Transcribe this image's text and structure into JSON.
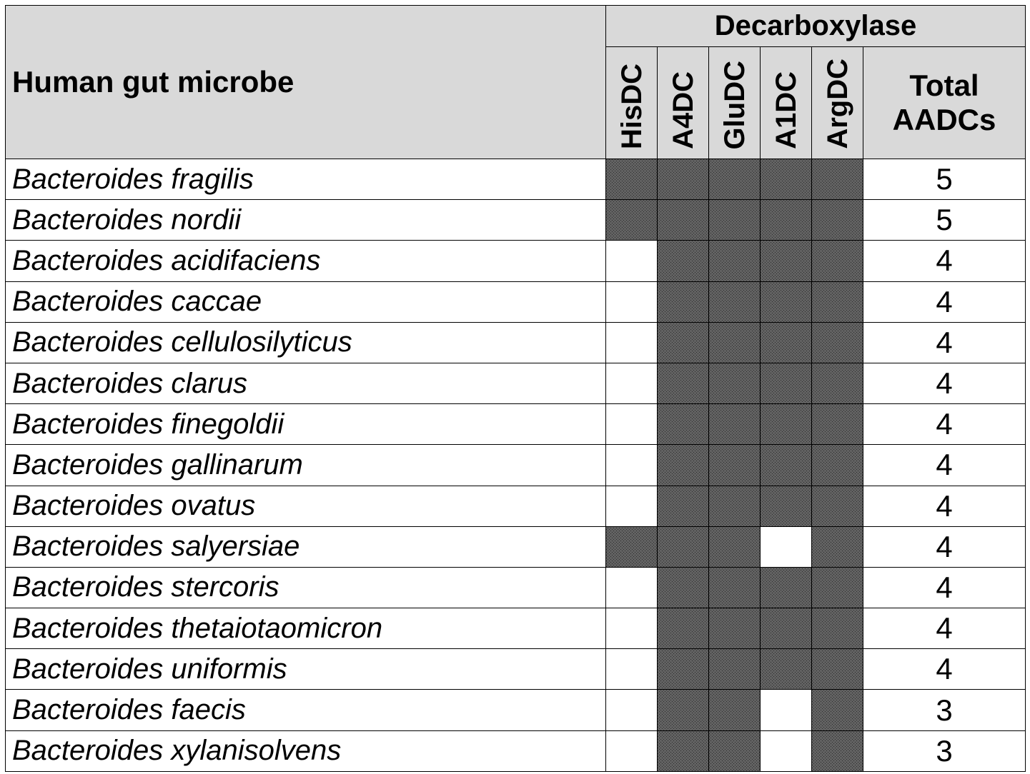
{
  "header": {
    "microbe_label": "Human gut microbe",
    "group_label": "Decarboxylase",
    "enzymes": [
      "HisDC",
      "A4DC",
      "GluDC",
      "A1DC",
      "ArgDC"
    ],
    "total_line1": "Total",
    "total_line2": "AADCs"
  },
  "colors": {
    "header_bg": "#d9d9d9",
    "present_fill": "#5a5a5a",
    "absent_fill": "#ffffff"
  },
  "rows": [
    {
      "name": "Bacteroides fragilis",
      "present": [
        true,
        true,
        true,
        true,
        true
      ],
      "total": "5"
    },
    {
      "name": "Bacteroides nordii",
      "present": [
        true,
        true,
        true,
        true,
        true
      ],
      "total": "5"
    },
    {
      "name": "Bacteroides acidifaciens",
      "present": [
        false,
        true,
        true,
        true,
        true
      ],
      "total": "4"
    },
    {
      "name": "Bacteroides caccae",
      "present": [
        false,
        true,
        true,
        true,
        true
      ],
      "total": "4"
    },
    {
      "name": "Bacteroides cellulosilyticus",
      "present": [
        false,
        true,
        true,
        true,
        true
      ],
      "total": "4"
    },
    {
      "name": "Bacteroides clarus",
      "present": [
        false,
        true,
        true,
        true,
        true
      ],
      "total": "4"
    },
    {
      "name": "Bacteroides finegoldii",
      "present": [
        false,
        true,
        true,
        true,
        true
      ],
      "total": "4"
    },
    {
      "name": "Bacteroides gallinarum",
      "present": [
        false,
        true,
        true,
        true,
        true
      ],
      "total": "4"
    },
    {
      "name": "Bacteroides ovatus",
      "present": [
        false,
        true,
        true,
        true,
        true
      ],
      "total": "4"
    },
    {
      "name": "Bacteroides salyersiae",
      "present": [
        true,
        true,
        true,
        false,
        true
      ],
      "total": "4"
    },
    {
      "name": "Bacteroides stercoris",
      "present": [
        false,
        true,
        true,
        true,
        true
      ],
      "total": "4"
    },
    {
      "name": "Bacteroides thetaiotaomicron",
      "present": [
        false,
        true,
        true,
        true,
        true
      ],
      "total": "4"
    },
    {
      "name": "Bacteroides uniformis",
      "present": [
        false,
        true,
        true,
        true,
        true
      ],
      "total": "4"
    },
    {
      "name": "Bacteroides faecis",
      "present": [
        false,
        true,
        true,
        false,
        true
      ],
      "total": "3"
    },
    {
      "name": "Bacteroides xylanisolvens",
      "present": [
        false,
        true,
        true,
        false,
        true
      ],
      "total": "3"
    }
  ]
}
